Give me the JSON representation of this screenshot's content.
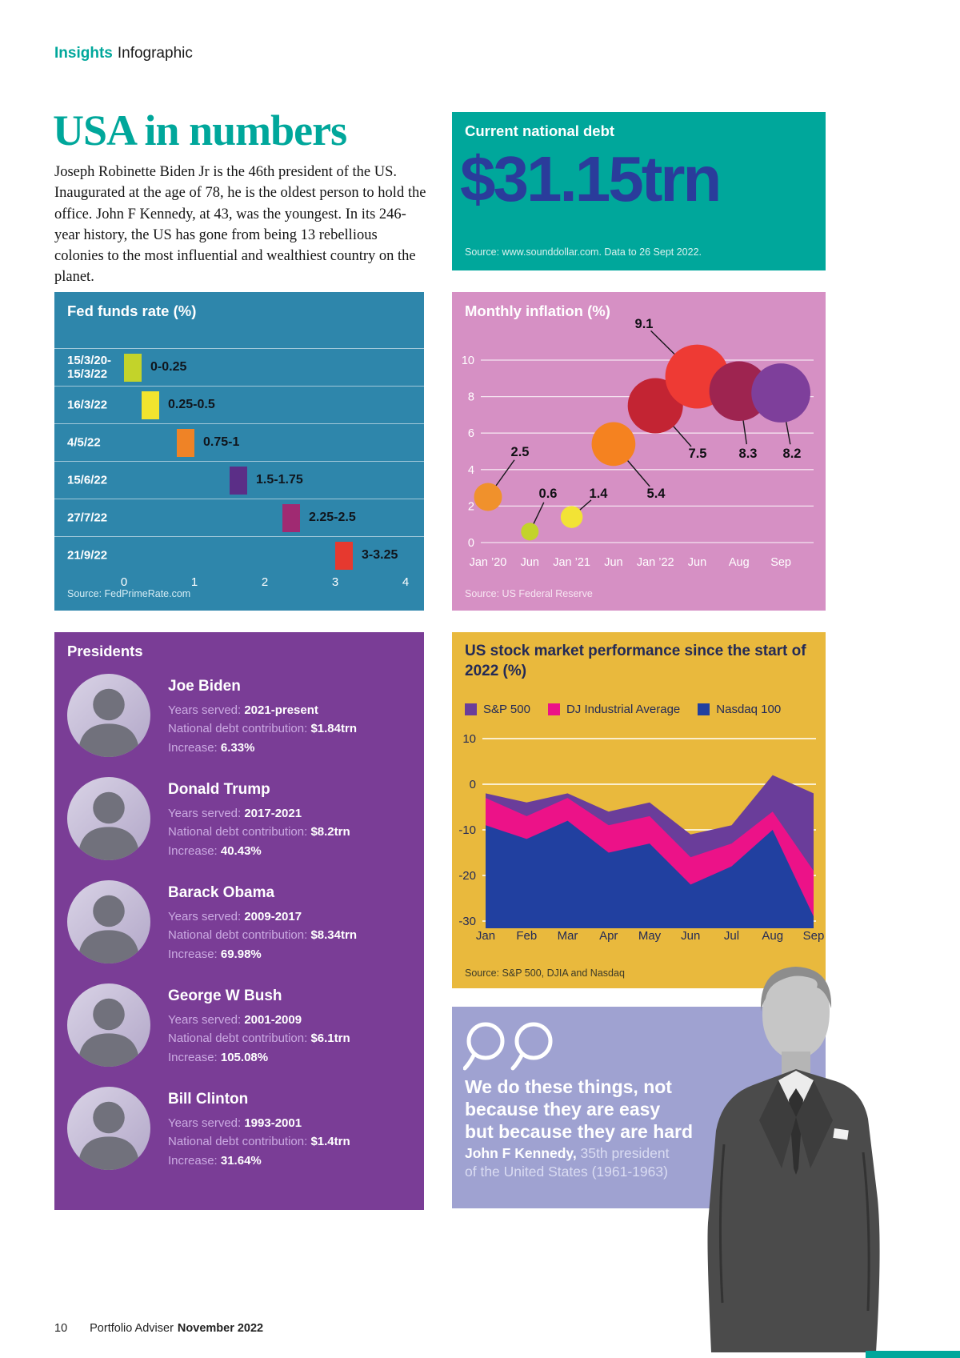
{
  "header": {
    "eyebrow_bold": "Insights",
    "eyebrow_regular": "Infographic"
  },
  "intro": {
    "title": "USA in numbers",
    "body": "Joseph Robinette Biden Jr is the 46th president of the US. Inaugurated at the age of 78, he is the oldest person to hold the office. John F Kennedy, at 43, was the youngest. In its 246-year history, the US has gone from being 13 rebellious colonies to the most influential and wealthiest country on the planet."
  },
  "debt_panel": {
    "title": "Current national debt",
    "value": "$31.15trn",
    "source": "Source: www.sounddollar.com. Data to 26 Sept 2022."
  },
  "presidents_panel": {
    "title": "Presidents",
    "labels": {
      "years": "Years served:",
      "debt": "National debt contribution:",
      "increase": "Increase:"
    },
    "entries": [
      {
        "name": "Joe Biden",
        "years": "2021-present",
        "debt": "$1.84trn",
        "increase": "6.33%"
      },
      {
        "name": "Donald Trump",
        "years": "2017-2021",
        "debt": "$8.2trn",
        "increase": "40.43%"
      },
      {
        "name": "Barack Obama",
        "years": "2009-2017",
        "debt": "$8.34trn",
        "increase": "69.98%"
      },
      {
        "name": "George W Bush",
        "years": "2001-2009",
        "debt": "$6.1trn",
        "increase": "105.08%"
      },
      {
        "name": "Bill Clinton",
        "years": "1993-2001",
        "debt": "$1.4trn",
        "increase": "31.64%"
      }
    ]
  },
  "quote_panel": {
    "quote_lines": [
      "We do these things, not",
      "because they are easy",
      "but because they are hard"
    ],
    "attribution_bold": "John F Kennedy,",
    "attribution_rest_line1": " 35th president",
    "attribution_rest_line2": "of the United States (1961-1963)"
  },
  "footer": {
    "page_number": "10",
    "publication": "Portfolio Adviser",
    "issue": "November 2022"
  },
  "colors": {
    "teal": "#00a79b",
    "navy": "#2a3c9b",
    "fed_blue": "#2e86ab",
    "pink": "#d690c4",
    "purple": "#7a3d96",
    "gold": "#e9b93d",
    "periwinkle": "#9fa2d1"
  },
  "chart_data": [
    {
      "id": "fed_funds_rate",
      "type": "bar",
      "orientation": "horizontal",
      "title": "Fed funds rate (%)",
      "categories": [
        "15/3/20-15/3/22",
        "16/3/22",
        "4/5/22",
        "15/6/22",
        "27/7/22",
        "21/9/22"
      ],
      "ranges": [
        [
          0,
          0.25
        ],
        [
          0.25,
          0.5
        ],
        [
          0.75,
          1
        ],
        [
          1.5,
          1.75
        ],
        [
          2.25,
          2.5
        ],
        [
          3,
          3.25
        ]
      ],
      "value_labels": [
        "0-0.25",
        "0.25-0.5",
        "0.75-1",
        "1.5-1.75",
        "2.25-2.5",
        "3-3.25"
      ],
      "colors": [
        "#c3d32a",
        "#f2e42e",
        "#ef8326",
        "#5b2e87",
        "#a02a72",
        "#e6392f"
      ],
      "xlim": [
        0,
        4
      ],
      "xticks": [
        0,
        1,
        2,
        3,
        4
      ],
      "source": "Source: FedPrimeRate.com"
    },
    {
      "id": "monthly_inflation",
      "type": "bubble",
      "title": "Monthly inflation (%)",
      "x_labels": [
        "Jan ’20",
        "Jun",
        "Jan ’21",
        "Jun",
        "Jan ’22",
        "Jun",
        "Aug",
        "Sep"
      ],
      "values": [
        2.5,
        0.6,
        1.4,
        5.4,
        7.5,
        9.1,
        8.3,
        8.2
      ],
      "colors": [
        "#f0912c",
        "#c3d32a",
        "#f2e335",
        "#f58220",
        "#c32433",
        "#ee3a34",
        "#9e2450",
        "#7e3f9b"
      ],
      "ylim": [
        0,
        10
      ],
      "yticks": [
        0,
        2,
        4,
        6,
        8,
        10
      ],
      "source": "Source: US Federal Reserve"
    },
    {
      "id": "stock_market_2022",
      "type": "area",
      "title": "US stock market performance since the start of 2022 (%)",
      "categories": [
        "Jan",
        "Feb",
        "Mar",
        "Apr",
        "May",
        "Jun",
        "Jul",
        "Aug",
        "Sep"
      ],
      "series": [
        {
          "name": "S&P 500",
          "color": "#6a3d9a",
          "values": [
            -2,
            -4,
            -2,
            -6,
            -4,
            -11,
            -9,
            2,
            -2
          ]
        },
        {
          "name": "DJ Industrial Average",
          "color": "#ec1288",
          "values": [
            -3,
            -7,
            -3,
            -9,
            -7,
            -16,
            -13,
            -6,
            -19
          ]
        },
        {
          "name": "Nasdaq 100",
          "color": "#2140a0",
          "values": [
            -9,
            -12,
            -8,
            -15,
            -13,
            -22,
            -18,
            -10,
            -29
          ]
        }
      ],
      "ylim": [
        -30,
        10
      ],
      "yticks": [
        10,
        0,
        -10,
        -20,
        -30
      ],
      "source": "Source: S&P 500, DJIA and Nasdaq"
    }
  ]
}
